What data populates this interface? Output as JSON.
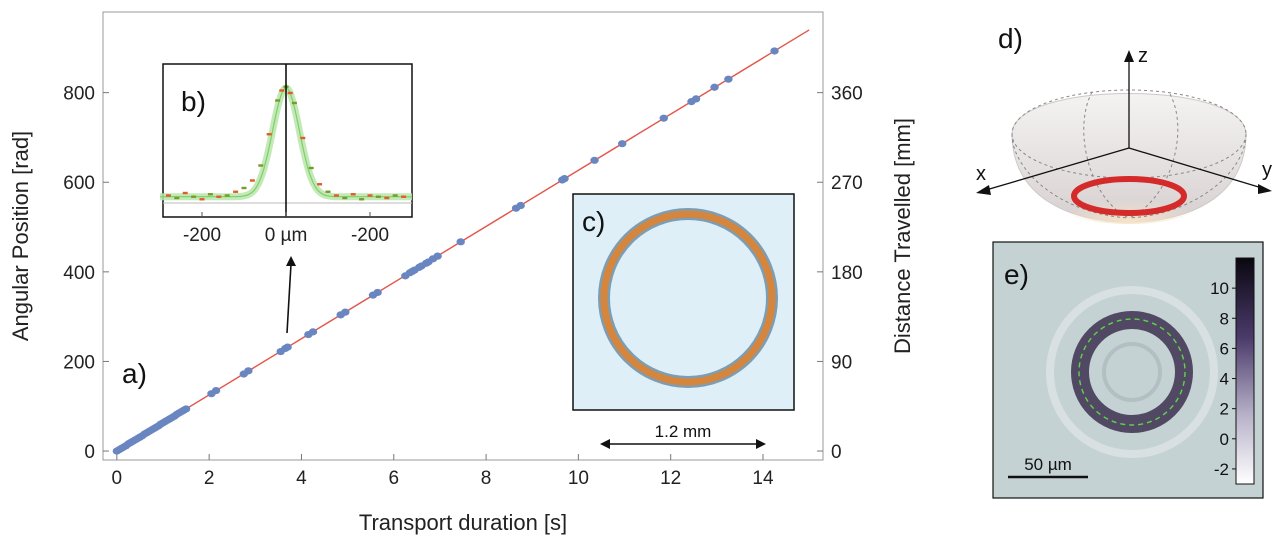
{
  "chart_data": [
    {
      "panel": "a)",
      "type": "scatter",
      "xlabel": "Transport duration [s]",
      "ylabel": "Angular Position [rad]",
      "y2label": "Distance Travelled [mm]",
      "xlim": [
        -0.3,
        15.3
      ],
      "ylim": [
        -20,
        980
      ],
      "xticks": [
        "0",
        "2",
        "4",
        "6",
        "8",
        "10",
        "12",
        "14"
      ],
      "yticks": [
        "0",
        "200",
        "400",
        "600",
        "800"
      ],
      "y2ticks": [
        "0",
        "90",
        "180",
        "270",
        "360"
      ],
      "fit_line": {
        "x": [
          0,
          15
        ],
        "y": [
          0,
          940
        ],
        "color": "#e4554a"
      },
      "marker_color": "#6a86c1",
      "series": [
        {
          "x": [
            0.0,
            0.05,
            0.1,
            0.15,
            0.2,
            0.25,
            0.3,
            0.35,
            0.4,
            0.45,
            0.5,
            0.55,
            0.6,
            0.65,
            0.7,
            0.75,
            0.8,
            0.85,
            0.9,
            0.95,
            1.0,
            1.05,
            1.1,
            1.15,
            1.2,
            1.25,
            1.3,
            1.35,
            1.4,
            1.45,
            1.5,
            2.05,
            2.15,
            2.75,
            2.85,
            3.55,
            3.65,
            3.7,
            4.15,
            4.25,
            4.85,
            4.95,
            5.55,
            5.65,
            6.25,
            6.35,
            6.4,
            6.45,
            6.55,
            6.6,
            6.7,
            6.75,
            6.85,
            6.95,
            7.45,
            8.65,
            8.75,
            9.65,
            9.7,
            10.35,
            10.95,
            11.85,
            12.45,
            12.55,
            12.95,
            13.25,
            14.25
          ],
          "y": [
            0,
            3,
            6,
            9,
            12,
            16,
            19,
            22,
            25,
            28,
            31,
            34,
            38,
            41,
            44,
            47,
            50,
            53,
            56,
            60,
            63,
            66,
            69,
            72,
            75,
            78,
            82,
            85,
            88,
            91,
            94,
            128,
            135,
            172,
            179,
            222,
            229,
            232,
            260,
            266,
            304,
            310,
            348,
            354,
            391,
            398,
            401,
            404,
            410,
            413,
            419,
            422,
            429,
            435,
            467,
            542,
            548,
            605,
            608,
            649,
            686,
            743,
            780,
            786,
            812,
            830,
            893
          ]
        }
      ]
    },
    {
      "panel": "b)",
      "type": "scatter",
      "xticks": [
        "-200",
        "0 µm",
        "-200"
      ],
      "arrow_note": "",
      "series": [
        {
          "x": [
            -280,
            -260,
            -240,
            -220,
            -200,
            -180,
            -160,
            -140,
            -120,
            -100,
            -80,
            -60,
            -40,
            -20,
            -10,
            0,
            10,
            20,
            40,
            60,
            80,
            100,
            120,
            140,
            160,
            180,
            200,
            220,
            240,
            260,
            280
          ],
          "y": [
            0.06,
            0.04,
            0.08,
            0.05,
            0.03,
            0.07,
            0.05,
            0.06,
            0.09,
            0.12,
            0.18,
            0.3,
            0.55,
            0.82,
            0.9,
            0.93,
            0.88,
            0.8,
            0.52,
            0.28,
            0.15,
            0.09,
            0.06,
            0.04,
            0.07,
            0.03,
            0.06,
            0.05,
            0.04,
            0.06,
            0.05
          ]
        }
      ]
    }
  ],
  "panel_c": {
    "label": "c)",
    "scale": "1.2 mm"
  },
  "panel_d": {
    "label": "d)",
    "axis_x": "x",
    "axis_y": "y",
    "axis_z": "z"
  },
  "panel_e": {
    "label": "e)",
    "scale": "50 µm",
    "colorbar_ticks": [
      "10",
      "8",
      "6",
      "4",
      "2",
      "0",
      "-2"
    ],
    "colorbar_range": [
      -3,
      12
    ]
  },
  "colors": {
    "fit": "#e4554a",
    "marker": "#6a86c1",
    "ring": "#d42a2a"
  }
}
